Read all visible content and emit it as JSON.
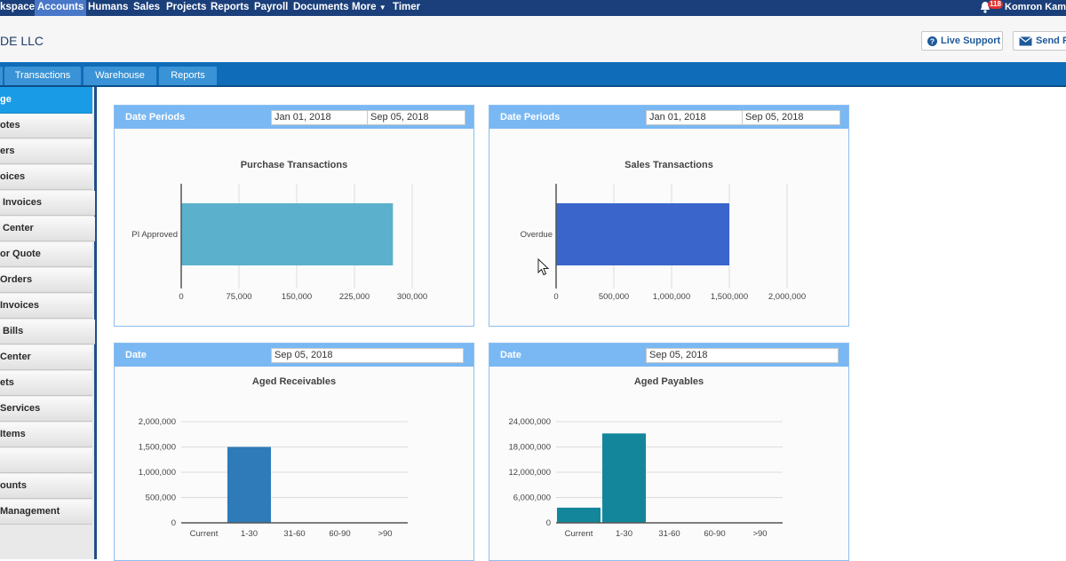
{
  "topnav": {
    "items": [
      "kspace",
      "Accounts",
      "Humans",
      "Sales",
      "Projects",
      "Reports",
      "Payroll",
      "Documents",
      "More",
      "Timer"
    ],
    "active": "Accounts",
    "notification_count": "118",
    "user_name": "Komron Kama"
  },
  "header": {
    "company": "DE LLC",
    "live_support": "Live Support",
    "send_feedback": "Send F"
  },
  "tabs": [
    "Transactions",
    "Warehouse",
    "Reports"
  ],
  "sidebar": {
    "items": [
      "ge",
      "otes",
      "ers",
      "oices",
      "Invoices",
      "Center",
      "or Quote",
      "Orders",
      "Invoices",
      "Bills",
      "Center",
      "ets",
      "Services",
      "Items",
      "",
      "ounts",
      "Management"
    ],
    "active_index": 0
  },
  "panels": {
    "purchase": {
      "label": "Date Periods",
      "from": "Jan 01, 2018",
      "to": "Sep 05, 2018"
    },
    "sales": {
      "label": "Date Periods",
      "from": "Jan 01, 2018",
      "to": "Sep 05, 2018"
    },
    "receivables": {
      "label": "Date",
      "date": "Sep 05, 2018"
    },
    "payables": {
      "label": "Date",
      "date": "Sep 05, 2018"
    }
  },
  "colors": {
    "purchase_bar": "#5bb1cc",
    "sales_bar": "#3a66cc",
    "receivables_bar": "#2f7ab9",
    "payables_bar": "#13869c"
  },
  "chart_data": [
    {
      "type": "bar",
      "orientation": "horizontal",
      "title": "Purchase Transactions",
      "categories": [
        "PI Approved"
      ],
      "values": [
        275000
      ],
      "xlim": [
        0,
        300000
      ],
      "ticks": [
        0,
        75000,
        150000,
        225000,
        300000
      ],
      "tick_labels": [
        "0",
        "75,000",
        "150,000",
        "225,000",
        "300,000"
      ],
      "grid": true
    },
    {
      "type": "bar",
      "orientation": "horizontal",
      "title": "Sales Transactions",
      "categories": [
        "Overdue"
      ],
      "values": [
        1500000
      ],
      "xlim": [
        0,
        2000000
      ],
      "ticks": [
        0,
        500000,
        1000000,
        1500000,
        2000000
      ],
      "tick_labels": [
        "0",
        "500,000",
        "1,000,000",
        "1,500,000",
        "2,000,000"
      ],
      "grid": true
    },
    {
      "type": "bar",
      "title": "Aged Receivables",
      "categories": [
        "Current",
        "1-30",
        "31-60",
        "60-90",
        ">90"
      ],
      "values": [
        0,
        1500000,
        0,
        0,
        0
      ],
      "ylim": [
        0,
        2000000
      ],
      "ticks": [
        0,
        500000,
        1000000,
        1500000,
        2000000
      ],
      "tick_labels": [
        "0",
        "500,000",
        "1,000,000",
        "1,500,000",
        "2,000,000"
      ],
      "grid": true
    },
    {
      "type": "bar",
      "title": "Aged Payables",
      "categories": [
        "Current",
        "1-30",
        "31-60",
        "60-90",
        ">90"
      ],
      "values": [
        3600000,
        21200000,
        0,
        0,
        0
      ],
      "ylim": [
        0,
        24000000
      ],
      "ticks": [
        0,
        6000000,
        12000000,
        18000000,
        24000000
      ],
      "tick_labels": [
        "0",
        "6,000,000",
        "12,000,000",
        "18,000,000",
        "24,000,000"
      ],
      "grid": true
    }
  ]
}
